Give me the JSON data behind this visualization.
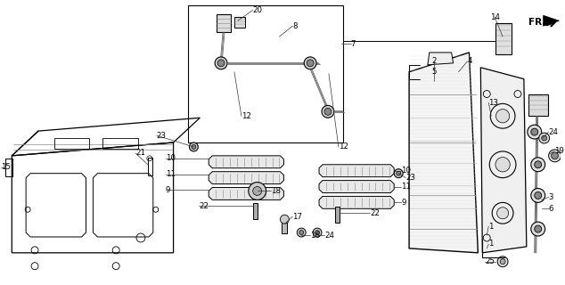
{
  "bg_color": "#ffffff",
  "line_color": "#000000",
  "gray": "#888888",
  "light_gray": "#cccccc",
  "dark_gray": "#444444"
}
